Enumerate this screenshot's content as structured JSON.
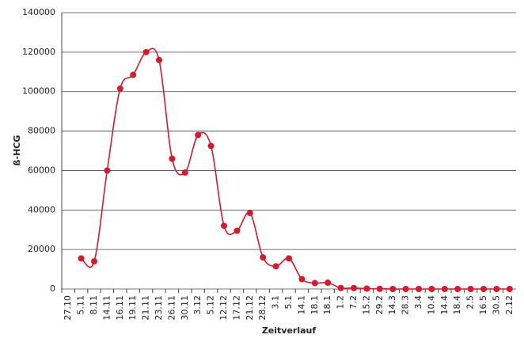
{
  "chart_data": {
    "type": "line",
    "x_label": "Zeitverlauf",
    "y_label": "ß-HCG",
    "categories": [
      "27.10",
      "5.11",
      "8.11",
      "14.11",
      "16.11",
      "19.11",
      "21.11",
      "23.11",
      "26.11",
      "30.11",
      "3.12",
      "5.12",
      "12.12",
      "17.12",
      "21.12",
      "28.12",
      "3.1",
      "5.1",
      "14.1",
      "18.1",
      "18.1",
      "1.2",
      "7.2",
      "15.2",
      "29.2",
      "14.3",
      "28.3",
      "3.4",
      "10.4",
      "14.4",
      "18.4",
      "2.5",
      "16.5",
      "30.5",
      "2.12"
    ],
    "series": [
      {
        "name": "ß-HCG",
        "color": "#d7192b",
        "values": [
          null,
          15500,
          14000,
          60000,
          101500,
          108500,
          120000,
          116000,
          66000,
          59000,
          78000,
          72500,
          32000,
          29500,
          38500,
          16000,
          11500,
          15500,
          5000,
          3000,
          3200,
          500,
          500,
          200,
          100,
          0,
          0,
          0,
          0,
          0,
          0,
          0,
          0,
          0,
          0
        ]
      }
    ],
    "ylim": [
      0,
      140000
    ],
    "yticks": [
      0,
      20000,
      40000,
      60000,
      80000,
      100000,
      120000,
      140000
    ],
    "grid": true
  }
}
